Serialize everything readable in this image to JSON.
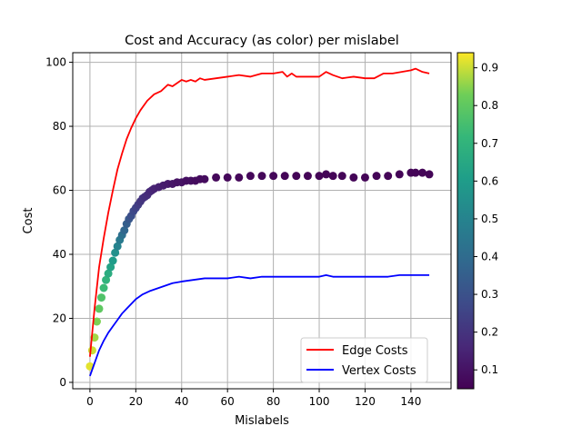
{
  "chart_data": {
    "type": "line",
    "title": "Cost and Accuracy (as color) per mislabel",
    "xlabel": "Mislabels",
    "ylabel": "Cost",
    "xlim": [
      -7.5,
      157.5
    ],
    "ylim": [
      -2.0,
      103.0
    ],
    "xticks": [
      0,
      20,
      40,
      60,
      80,
      100,
      120,
      140
    ],
    "yticks": [
      0,
      20,
      40,
      60,
      80,
      100
    ],
    "grid": true,
    "legend": {
      "placement": "lower right",
      "entries": [
        "Edge Costs",
        "Vertex Costs"
      ]
    },
    "series": [
      {
        "name": "Edge Costs",
        "color": "#ff0000",
        "x": [
          0,
          2,
          4,
          6,
          8,
          10,
          12,
          14,
          16,
          18,
          20,
          22,
          25,
          28,
          31,
          34,
          36,
          38,
          40,
          42,
          44,
          46,
          48,
          50,
          55,
          60,
          65,
          70,
          75,
          80,
          84,
          86,
          88,
          90,
          95,
          100,
          103,
          106,
          110,
          115,
          120,
          124,
          128,
          132,
          136,
          140,
          142,
          145,
          148
        ],
        "values": [
          8.0,
          23.0,
          36.0,
          45.0,
          53.0,
          60.0,
          66.5,
          71.5,
          76.0,
          79.5,
          82.5,
          85.0,
          88.0,
          90.0,
          91.0,
          93.0,
          92.5,
          93.5,
          94.5,
          94.0,
          94.5,
          94.0,
          95.0,
          94.5,
          95.0,
          95.5,
          96.0,
          95.5,
          96.5,
          96.5,
          97.0,
          95.5,
          96.5,
          95.5,
          95.5,
          95.5,
          97.0,
          96.0,
          95.0,
          95.5,
          95.0,
          95.0,
          96.5,
          96.5,
          97.0,
          97.5,
          98.0,
          97.0,
          96.5
        ]
      },
      {
        "name": "Vertex Costs",
        "color": "#0000ff",
        "x": [
          0,
          2,
          4,
          6,
          8,
          10,
          12,
          14,
          16,
          18,
          20,
          23,
          26,
          30,
          34,
          36,
          40,
          45,
          50,
          55,
          60,
          65,
          70,
          75,
          80,
          85,
          90,
          95,
          100,
          103,
          106,
          110,
          115,
          120,
          125,
          130,
          135,
          140,
          145,
          148
        ],
        "values": [
          2.0,
          6.0,
          10.0,
          13.0,
          15.5,
          17.5,
          19.5,
          21.5,
          23.0,
          24.5,
          26.0,
          27.5,
          28.5,
          29.5,
          30.5,
          31.0,
          31.5,
          32.0,
          32.5,
          32.5,
          32.5,
          33.0,
          32.5,
          33.0,
          33.0,
          33.0,
          33.0,
          33.0,
          33.0,
          33.5,
          33.0,
          33.0,
          33.0,
          33.0,
          33.0,
          33.0,
          33.5,
          33.5,
          33.5,
          33.5
        ]
      },
      {
        "name": "",
        "type": "scatter",
        "color_meaning": "accuracy",
        "x": [
          0,
          1,
          2,
          3,
          4,
          5,
          6,
          7,
          8,
          9,
          10,
          11,
          12,
          13,
          14,
          15,
          16,
          17,
          18,
          19,
          20,
          21,
          22,
          23,
          24,
          25,
          26,
          27,
          28,
          30,
          32,
          34,
          36,
          38,
          40,
          42,
          44,
          46,
          48,
          50,
          55,
          60,
          65,
          70,
          75,
          80,
          85,
          90,
          95,
          100,
          103,
          106,
          110,
          115,
          120,
          125,
          130,
          135,
          140,
          142,
          145,
          148
        ],
        "values": [
          5.0,
          10.0,
          14.0,
          19.0,
          23.0,
          26.5,
          29.5,
          32.0,
          34.0,
          36.0,
          38.0,
          40.5,
          42.5,
          44.5,
          46.0,
          47.5,
          49.5,
          51.0,
          52.0,
          53.5,
          54.5,
          55.5,
          56.5,
          57.5,
          58.0,
          58.5,
          59.5,
          60.0,
          60.5,
          61.0,
          61.5,
          62.0,
          62.0,
          62.5,
          62.5,
          63.0,
          63.0,
          63.0,
          63.5,
          63.5,
          64.0,
          64.0,
          64.0,
          64.5,
          64.5,
          64.5,
          64.5,
          64.5,
          64.5,
          64.5,
          65.0,
          64.5,
          64.5,
          64.0,
          64.0,
          64.5,
          64.5,
          65.0,
          65.5,
          65.5,
          65.5,
          65.0
        ],
        "accuracy": [
          0.92,
          0.9,
          0.87,
          0.84,
          0.8,
          0.77,
          0.73,
          0.7,
          0.67,
          0.63,
          0.6,
          0.55,
          0.5,
          0.46,
          0.42,
          0.38,
          0.35,
          0.32,
          0.29,
          0.27,
          0.25,
          0.23,
          0.21,
          0.2,
          0.19,
          0.18,
          0.17,
          0.16,
          0.15,
          0.14,
          0.13,
          0.12,
          0.11,
          0.1,
          0.1,
          0.09,
          0.09,
          0.08,
          0.08,
          0.08,
          0.07,
          0.07,
          0.07,
          0.07,
          0.07,
          0.07,
          0.06,
          0.06,
          0.06,
          0.06,
          0.06,
          0.06,
          0.06,
          0.06,
          0.06,
          0.06,
          0.06,
          0.06,
          0.06,
          0.06,
          0.06,
          0.06
        ]
      }
    ],
    "colorbar": {
      "colormap": "viridis",
      "range": [
        0.05,
        0.94
      ],
      "ticks": [
        "0.1",
        "0.2",
        "0.3",
        "0.4",
        "0.5",
        "0.6",
        "0.7",
        "0.8",
        "0.9"
      ]
    }
  }
}
